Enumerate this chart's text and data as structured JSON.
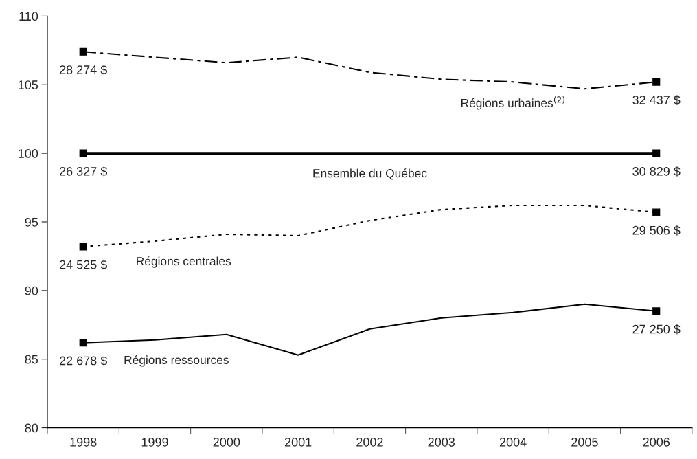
{
  "chart_data": {
    "type": "line",
    "categories": [
      "1998",
      "1999",
      "2000",
      "2001",
      "2002",
      "2003",
      "2004",
      "2005",
      "2006"
    ],
    "series": [
      {
        "name": "Régions urbaines$^{(2)}$",
        "color": "#000000",
        "line_style": "dashed",
        "values": [
          107.4,
          107.0,
          106.6,
          107.0,
          105.9,
          105.4,
          105.2,
          104.7,
          105.2
        ]
      },
      {
        "name": "Ensemble du Québec",
        "color": "#000000",
        "line_style": "solid",
        "values": [
          100,
          100,
          100,
          100,
          100,
          100,
          100,
          100,
          100
        ]
      },
      {
        "name": "Régions centrales",
        "color": "#000000",
        "line_style": "dotted",
        "values": [
          93.2,
          93.6,
          94.1,
          94.0,
          95.1,
          95.9,
          96.2,
          96.2,
          95.7
        ]
      },
      {
        "name": "Régions ressources",
        "color": "#000000",
        "line_style": "solid",
        "values": [
          86.2,
          86.4,
          86.8,
          85.3,
          87.2,
          88.0,
          88.4,
          89.0,
          88.5
        ]
      }
    ],
    "annotations": [
      {
        "text": "28 274 $",
        "x": "1998",
        "y": 107.4
      },
      {
        "text": "32 437 $",
        "x": "2006",
        "y": 105.2
      },
      {
        "text": "26 327 $",
        "x": "1998",
        "y": 100
      },
      {
        "text": "30 829 $",
        "x": "2006",
        "y": 100
      },
      {
        "text": "24 525 $",
        "x": "1998",
        "y": 93.2
      },
      {
        "text": "29 506 $",
        "x": "2006",
        "y": 95.7
      },
      {
        "text": "22 678 $",
        "x": "1998",
        "y": 86.2
      },
      {
        "text": "27 250 $",
        "x": "2006",
        "y": 88.5
      }
    ],
    "ylim": [
      80,
      110
    ],
    "yticks": [
      80,
      85,
      90,
      95,
      100,
      105,
      110
    ],
    "grid": false,
    "legend": false
  }
}
